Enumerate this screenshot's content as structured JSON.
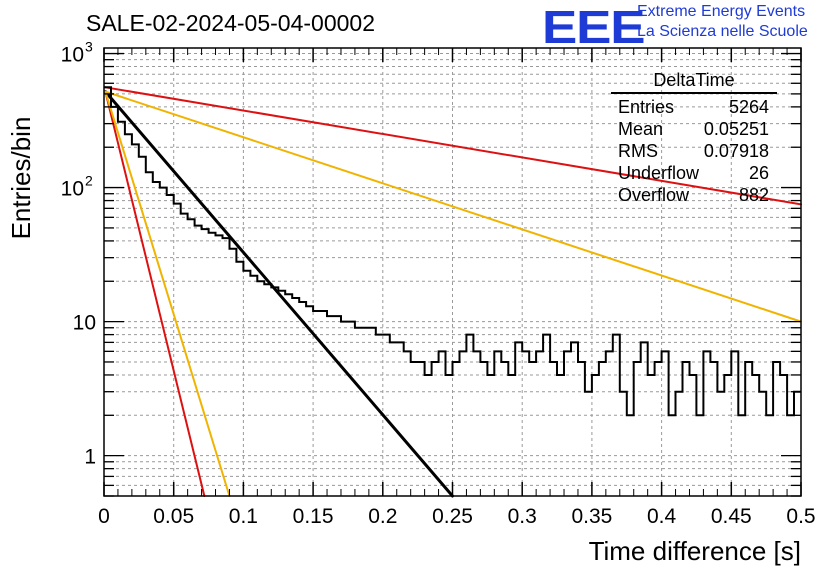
{
  "header": {
    "title": "SALE-02-2024-05-04-00002",
    "logo_text": "EEE",
    "logo_line1": "Extreme Energy Events",
    "logo_line2": "La Scienza nelle Scuole",
    "logo_color": "#1f3bd6"
  },
  "stats_box": {
    "title": "DeltaTime",
    "rows": [
      {
        "label": "Entries",
        "value": "5264"
      },
      {
        "label": "Mean",
        "value": "0.05251"
      },
      {
        "label": "RMS",
        "value": "0.07918"
      },
      {
        "label": "Underflow",
        "value": "26"
      },
      {
        "label": "Overflow",
        "value": "882"
      }
    ]
  },
  "chart_data": {
    "type": "line",
    "xlabel": "Time difference [s]",
    "ylabel": "Entries/bin",
    "xlim": [
      0,
      0.5
    ],
    "ylim": [
      0.5,
      1100
    ],
    "y_scale": "log",
    "grid": true,
    "x_ticks": [
      "0",
      "0.05",
      "0.1",
      "0.15",
      "0.2",
      "0.25",
      "0.3",
      "0.35",
      "0.4",
      "0.45",
      "0.5"
    ],
    "y_ticks": [
      {
        "label": "1",
        "value": 1
      },
      {
        "label": "10",
        "value": 10
      },
      {
        "label": "10",
        "sup": "2",
        "value": 100
      },
      {
        "label": "10",
        "sup": "3",
        "value": 1000
      }
    ],
    "histogram": {
      "name": "DeltaTime",
      "color": "#000000",
      "bin_width": 0.005,
      "counts": [
        560,
        400,
        310,
        250,
        210,
        170,
        130,
        110,
        100,
        88,
        76,
        64,
        58,
        52,
        49,
        46,
        44,
        42,
        35,
        28,
        24,
        22,
        20,
        19,
        18,
        17,
        16,
        15,
        14,
        13,
        12,
        12,
        11,
        11,
        10,
        10,
        9,
        9,
        9,
        8,
        8,
        7,
        7,
        6,
        5,
        5,
        4,
        5,
        6,
        4,
        5,
        6,
        8,
        6,
        5,
        4,
        6,
        5,
        4,
        7,
        6,
        5,
        6,
        8,
        5,
        4,
        6,
        7,
        5,
        3,
        4,
        5,
        6,
        8,
        3,
        2,
        5,
        7,
        4,
        5,
        6,
        2,
        3,
        5,
        4,
        2,
        6,
        5,
        3,
        4,
        6,
        2,
        5,
        4,
        3,
        2,
        5,
        4,
        2,
        3
      ]
    },
    "fits": [
      {
        "name": "fit_black",
        "color": "#000000",
        "width": 3,
        "x": [
          0.001,
          0.25
        ],
        "y": [
          520,
          0.5
        ]
      },
      {
        "name": "fit_red_steep",
        "color": "#dd1111",
        "width": 2,
        "x": [
          0.001,
          0.072
        ],
        "y": [
          520,
          0.5
        ]
      },
      {
        "name": "fit_yellow_steep",
        "color": "#f0b400",
        "width": 2,
        "x": [
          0.001,
          0.09
        ],
        "y": [
          520,
          0.5
        ]
      },
      {
        "name": "fit_red_shallow",
        "color": "#dd1111",
        "width": 2,
        "x": [
          0.001,
          0.5
        ],
        "y": [
          560,
          75
        ]
      },
      {
        "name": "fit_yellow_shallow",
        "color": "#f0b400",
        "width": 2,
        "x": [
          0.001,
          0.5
        ],
        "y": [
          520,
          10
        ]
      }
    ]
  }
}
